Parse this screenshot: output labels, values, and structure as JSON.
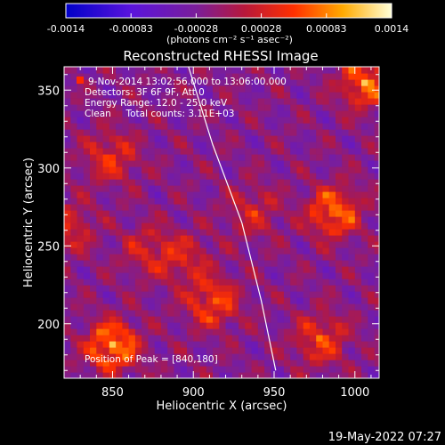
{
  "chart_data": {
    "type": "heatmap",
    "title": "Reconstructed RHESSI Image",
    "xlabel": "Heliocentric X (arcsec)",
    "ylabel": "Heliocentric Y (arcsec)",
    "xlim": [
      820,
      1015
    ],
    "ylim": [
      165,
      365
    ],
    "x_ticks": [
      850,
      900,
      950,
      1000
    ],
    "y_ticks": [
      200,
      250,
      300,
      350
    ],
    "colorbar": {
      "min": -0.0014,
      "max": 0.0014,
      "tick_labels": [
        "-0.0014",
        "-0.00083",
        "-0.00028",
        "0.00028",
        "0.00083",
        "0.0014"
      ],
      "unit_label": "(photons cm⁻² s⁻¹ asec⁻²)"
    },
    "annotations": [
      "9-Nov-2014 13:02:56.000 to 13:06:00.000",
      "Detectors: 3F 6F 9F, Att 0",
      "Energy Range: 12.0 - 25.0 keV",
      "Clean     Total counts: 3.11E+03"
    ],
    "peak_label": "Position of Peak = [840,180]",
    "peak_position": [
      840,
      180
    ],
    "limb_line": {
      "x": [
        897,
        912,
        930,
        942,
        951
      ],
      "y": [
        365,
        315,
        265,
        215,
        170
      ]
    },
    "bright_regions": [
      {
        "x": 848,
        "y": 184,
        "value": 0.0014
      },
      {
        "x": 1005,
        "y": 353,
        "value": 0.0012
      },
      {
        "x": 985,
        "y": 270,
        "value": 0.0012
      },
      {
        "x": 910,
        "y": 212,
        "value": 0.001
      },
      {
        "x": 977,
        "y": 188,
        "value": 0.0009
      },
      {
        "x": 847,
        "y": 305,
        "value": 0.0008
      },
      {
        "x": 820,
        "y": 260,
        "value": 0.0007
      },
      {
        "x": 935,
        "y": 270,
        "value": 0.0006
      },
      {
        "x": 870,
        "y": 245,
        "value": 0.0006
      },
      {
        "x": 893,
        "y": 240,
        "value": 0.0006
      }
    ]
  },
  "footer": {
    "timestamp": "19-May-2022 07:27"
  }
}
